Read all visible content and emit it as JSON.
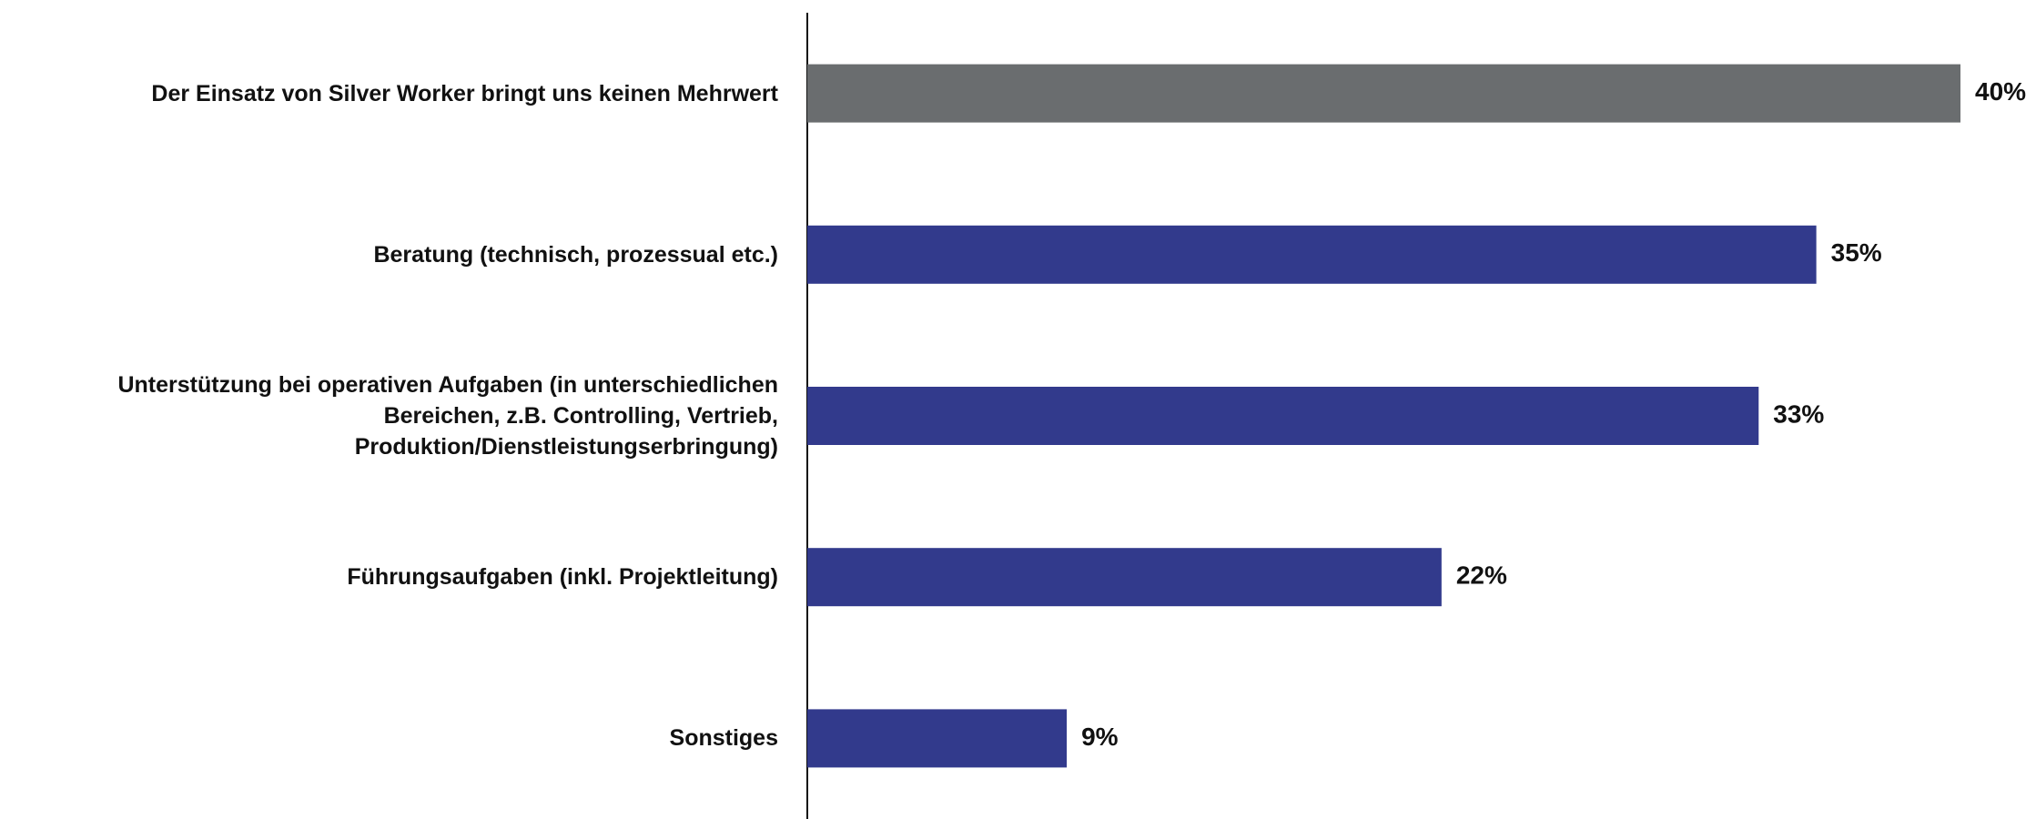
{
  "chart_data": {
    "type": "barh",
    "categories": [
      "Der Einsatz von Silver Worker bringt uns keinen Mehrwert",
      "Beratung (technisch, prozessual etc.)",
      "Unterstützung bei operativen Aufgaben (in unterschiedlichen Bereichen, z.B. Controlling, Vertrieb, Produktion/Dienstleistungserbringung)",
      "Führungsaufgaben (inkl. Projektleitung)",
      "Sonstiges"
    ],
    "values": [
      40,
      35,
      33,
      22,
      9
    ],
    "value_labels": [
      "40%",
      "35%",
      "33%",
      "22%",
      "9%"
    ],
    "colors": [
      "#6a6d6f",
      "#323a8c",
      "#323a8c",
      "#323a8c",
      "#323a8c"
    ],
    "xlim": [
      0,
      40
    ]
  }
}
